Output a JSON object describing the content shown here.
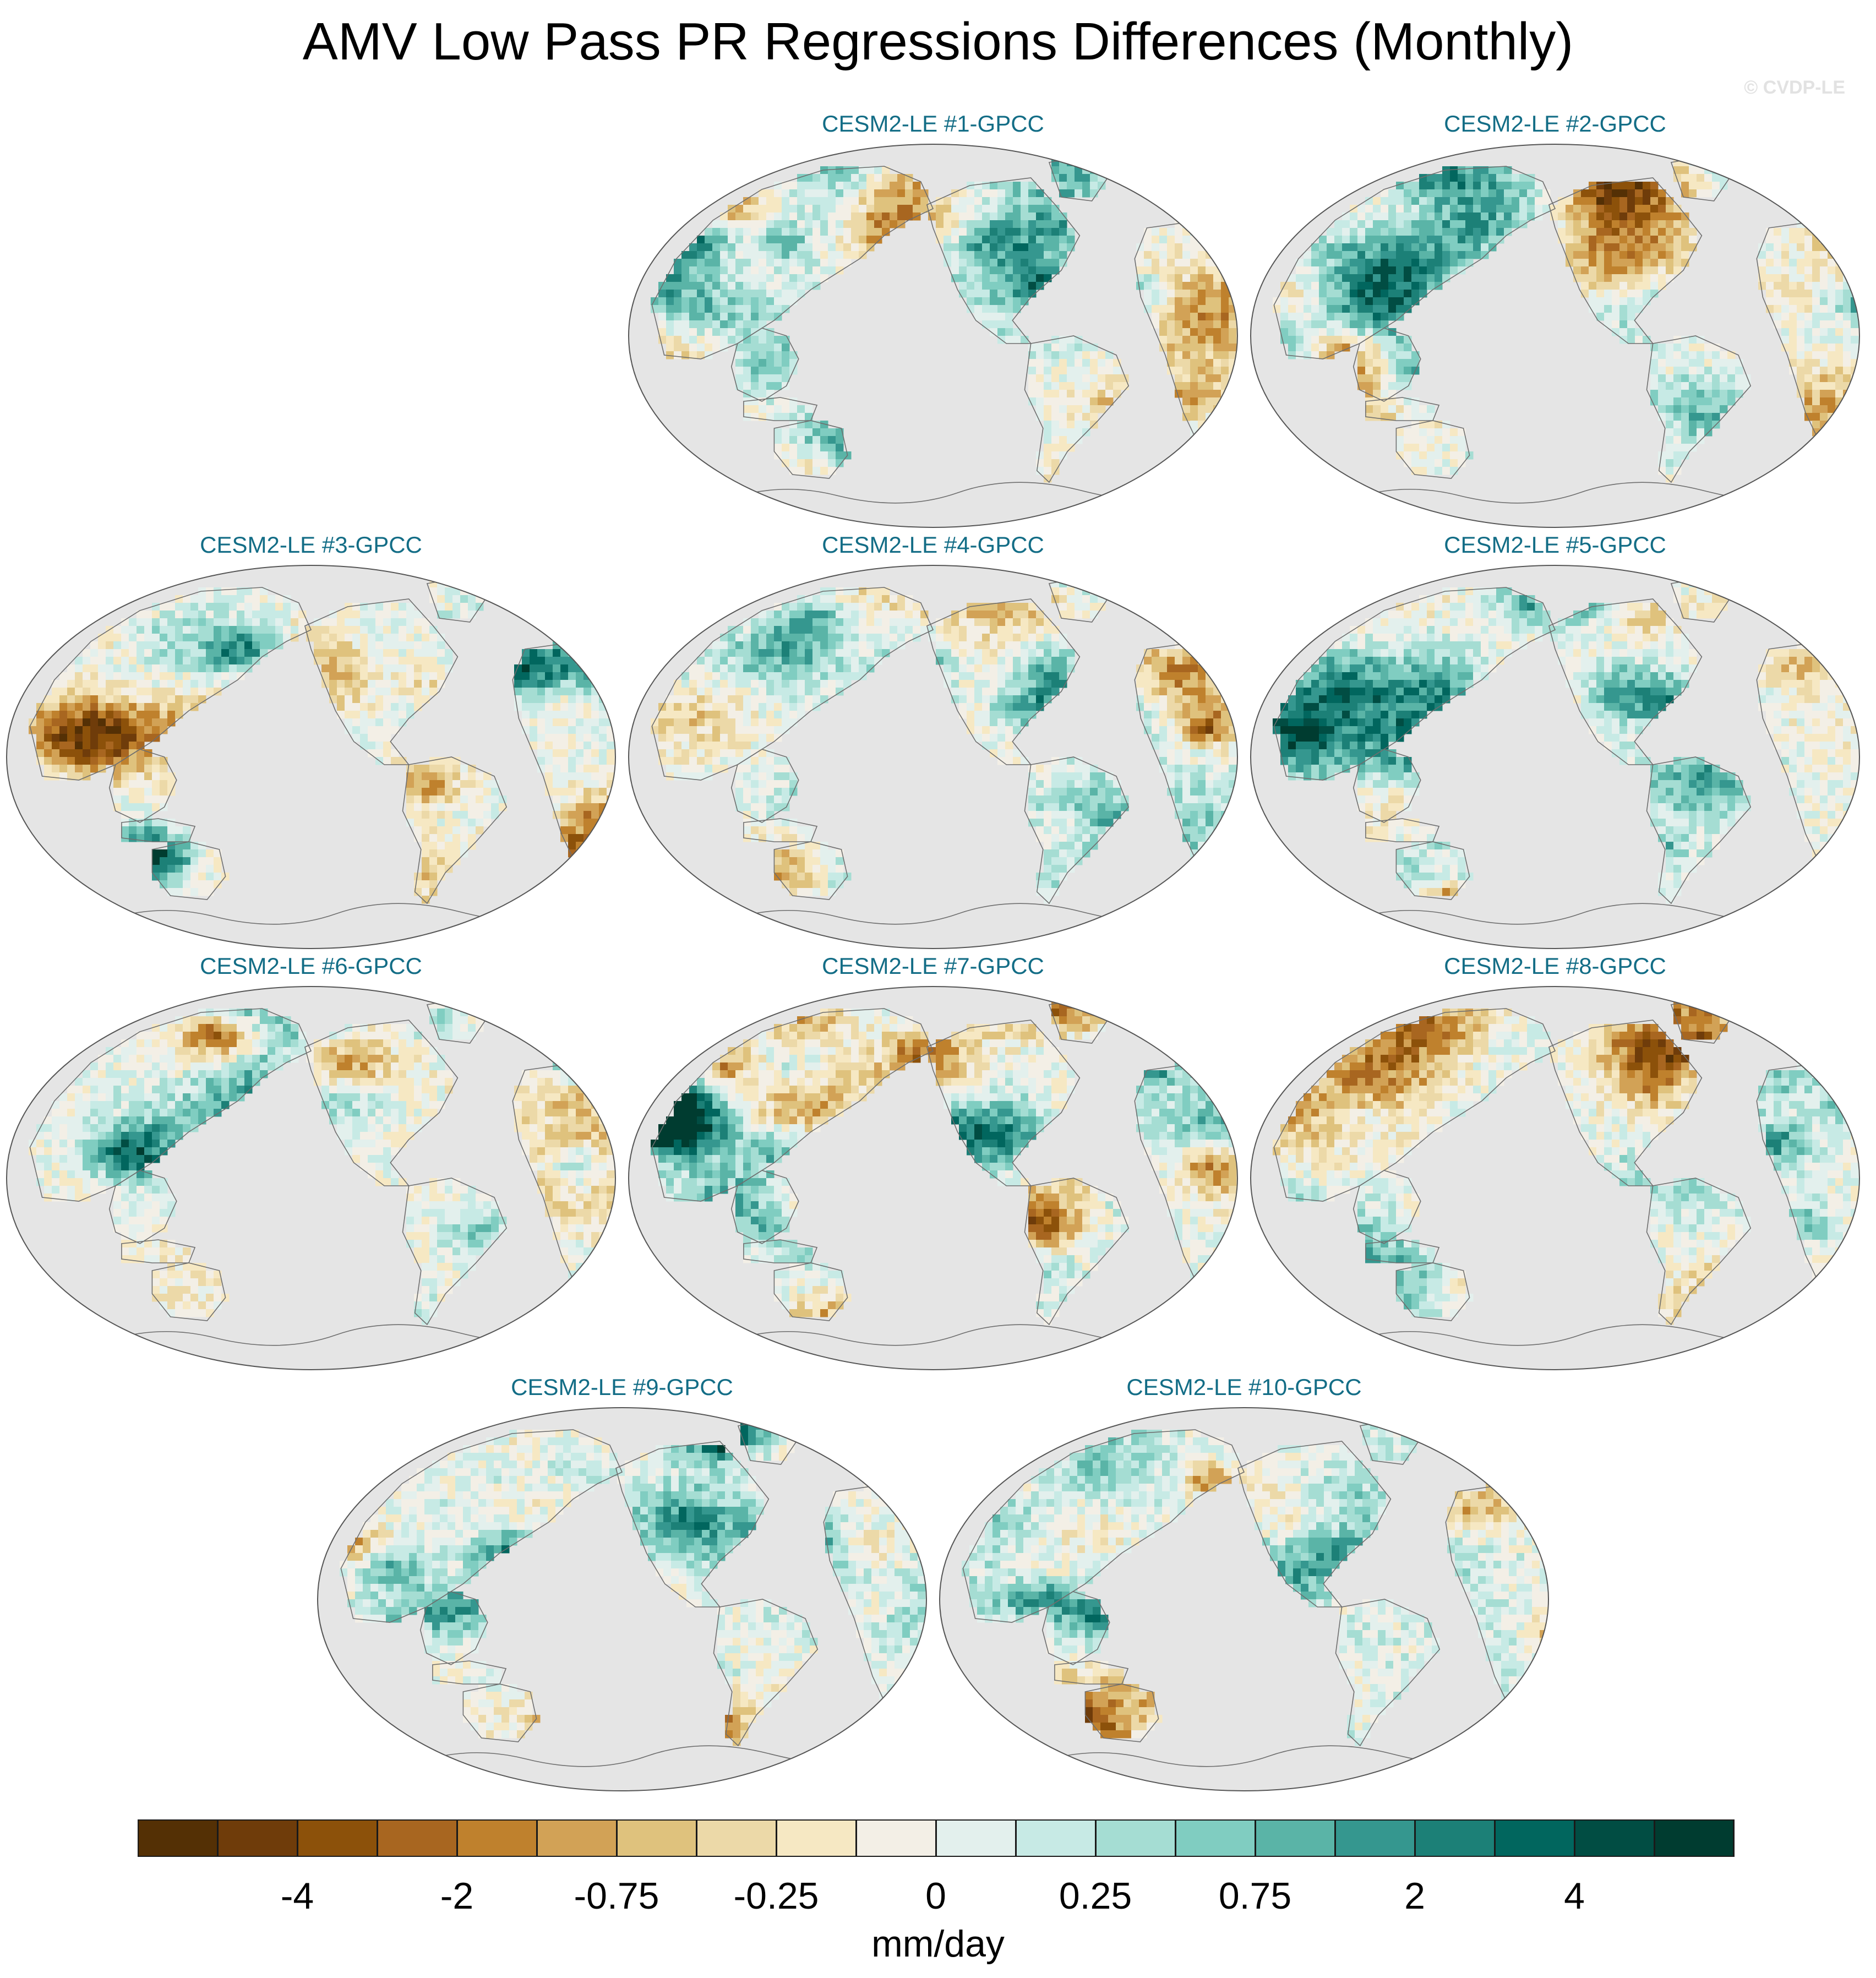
{
  "title": "AMV Low Pass PR Regressions Differences (Monthly)",
  "watermark": "© CVDP-LE",
  "panels": [
    {
      "title": "CESM2-LE #1-GPCC"
    },
    {
      "title": "CESM2-LE #2-GPCC"
    },
    {
      "title": "CESM2-LE #3-GPCC"
    },
    {
      "title": "CESM2-LE #4-GPCC"
    },
    {
      "title": "CESM2-LE #5-GPCC"
    },
    {
      "title": "CESM2-LE #6-GPCC"
    },
    {
      "title": "CESM2-LE #7-GPCC"
    },
    {
      "title": "CESM2-LE #8-GPCC"
    },
    {
      "title": "CESM2-LE #9-GPCC"
    },
    {
      "title": "CESM2-LE #10-GPCC"
    }
  ],
  "colorbar": {
    "units": "mm/day",
    "colors": [
      "#543005",
      "#6f3c0a",
      "#8c510a",
      "#a86620",
      "#bf812d",
      "#d2a256",
      "#dfc27d",
      "#ecd9a8",
      "#f6e8c3",
      "#f3efe6",
      "#e3f0ed",
      "#c7eae5",
      "#a5ddd3",
      "#80cdc1",
      "#5ab4a7",
      "#35978f",
      "#1c8077",
      "#01665e",
      "#014d43",
      "#003c30"
    ],
    "tick_labels": [
      "-4",
      "-2",
      "-0.75",
      "-0.25",
      "0",
      "0.25",
      "0.75",
      "2",
      "4"
    ]
  },
  "map_colors": {
    "ocean": "#e5e5e5",
    "coast": "#6e6e6e"
  }
}
